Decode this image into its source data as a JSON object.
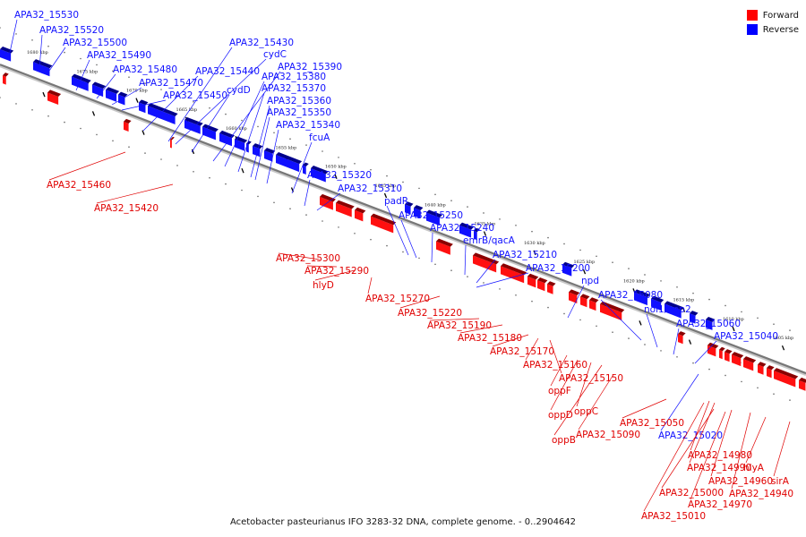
{
  "legend": {
    "forward_label": "Forward",
    "reverse_label": "Reverse",
    "forward_color": "#ff0000",
    "reverse_color": "#0000ff"
  },
  "caption": "Acetobacter pasteurianus IFO 3283-32 DNA, complete genome. - 0..2904642",
  "tick_labels": [
    "1680 kbp",
    "1675 kbp",
    "1670 kbp",
    "1665 kbp",
    "1660 kbp",
    "1655 kbp",
    "1650 kbp",
    "1645 kbp",
    "1640 kbp",
    "1635 kbp",
    "1630 kbp",
    "1625 kbp",
    "1620 kbp",
    "1615 kbp",
    "1610 kbp",
    "1605 kbp"
  ],
  "reverse_labels": [
    "APA32_15530",
    "APA32_15520",
    "APA32_15500",
    "APA32_15490",
    "APA32_15480",
    "APA32_15470",
    "APA32_15450",
    "APA32_15440",
    "APA32_15430",
    "cydC",
    "cydD",
    "APA32_15390",
    "APA32_15380",
    "APA32_15370",
    "APA32_15360",
    "APA32_15350",
    "APA32_15340",
    "fcuA",
    "APA32_15320",
    "APA32_15310",
    "padR",
    "APA32_15250",
    "APA32_15240",
    "emrB/qacA",
    "APA32_15210",
    "APA32_15200",
    "npd",
    "APA32_15080",
    "nol1/nop2",
    "APA32_15060",
    "APA32_15040",
    "APA32_15020"
  ],
  "forward_labels": [
    "APA32_15460",
    "APA32_15420",
    "APA32_15300",
    "APA32_15290",
    "hlyD",
    "APA32_15270",
    "APA32_15220",
    "APA32_15190",
    "APA32_15180",
    "APA32_15170",
    "APA32_15160",
    "APA32_15150",
    "oppF",
    "oppD",
    "oppC",
    "oppB",
    "APA32_15090",
    "APA32_15050",
    "APA32_14980",
    "APA32_14990",
    "hlyA",
    "APA32_14960",
    "APA32_15000",
    "APA32_14940",
    "sirA",
    "APA32_14970",
    "APA32_15010"
  ]
}
